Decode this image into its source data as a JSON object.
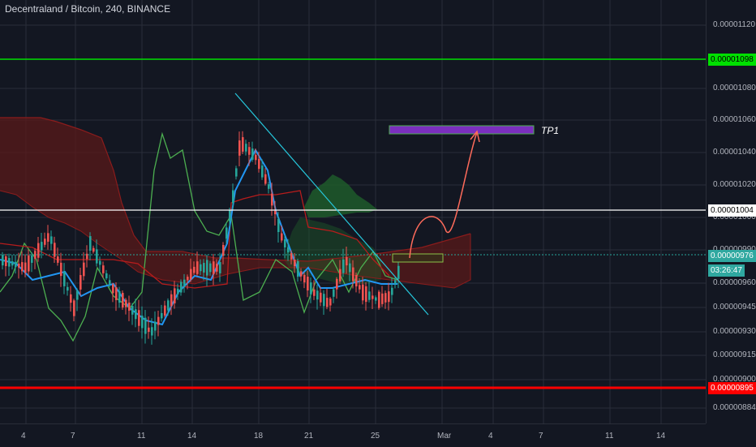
{
  "header": {
    "title": "Decentraland / Bitcoin, 240, BINANCE"
  },
  "price_axis": {
    "ticks": [
      "0.00001120",
      "0.00001080",
      "0.00001060",
      "0.00001040",
      "0.00001020",
      "0.00001000",
      "0.00000990",
      "0.00000960",
      "0.00000945",
      "0.00000930",
      "0.00000915",
      "0.00000900",
      "0.00000884"
    ],
    "markers": {
      "resistance": {
        "label": "0.00001098",
        "bg": "#00e000",
        "fg": "#000000"
      },
      "level": {
        "label": "0.00001004",
        "bg": "#ffffff",
        "fg": "#000000"
      },
      "current": {
        "label": "0.00000976",
        "bg": "#2fa8a0",
        "fg": "#ffffff"
      },
      "countdown": {
        "label": "03:26:47",
        "bg": "#2fa8a0",
        "fg": "#ffffff"
      },
      "support": {
        "label": "0.00000895",
        "bg": "#ff0000",
        "fg": "#ffffff"
      }
    }
  },
  "time_axis": {
    "labels": [
      "4",
      "7",
      "11",
      "14",
      "18",
      "21",
      "25",
      "Mar",
      "4",
      "7",
      "11",
      "14"
    ]
  },
  "annotations": {
    "tp1": "TP1"
  },
  "colors": {
    "background": "#131722",
    "grid": "#2a2e39",
    "candle_up": "#26a69a",
    "candle_down": "#ef5350",
    "cloud_bear": "#5a1a1a",
    "cloud_bull": "#1f5a2a",
    "tenkan": "#2196f3",
    "kijun": "#b71c1c",
    "lagging": "#4caf50",
    "trendline": "#26c6da",
    "projection": "#ff6b5b",
    "target_box": "#7b2fbe"
  }
}
